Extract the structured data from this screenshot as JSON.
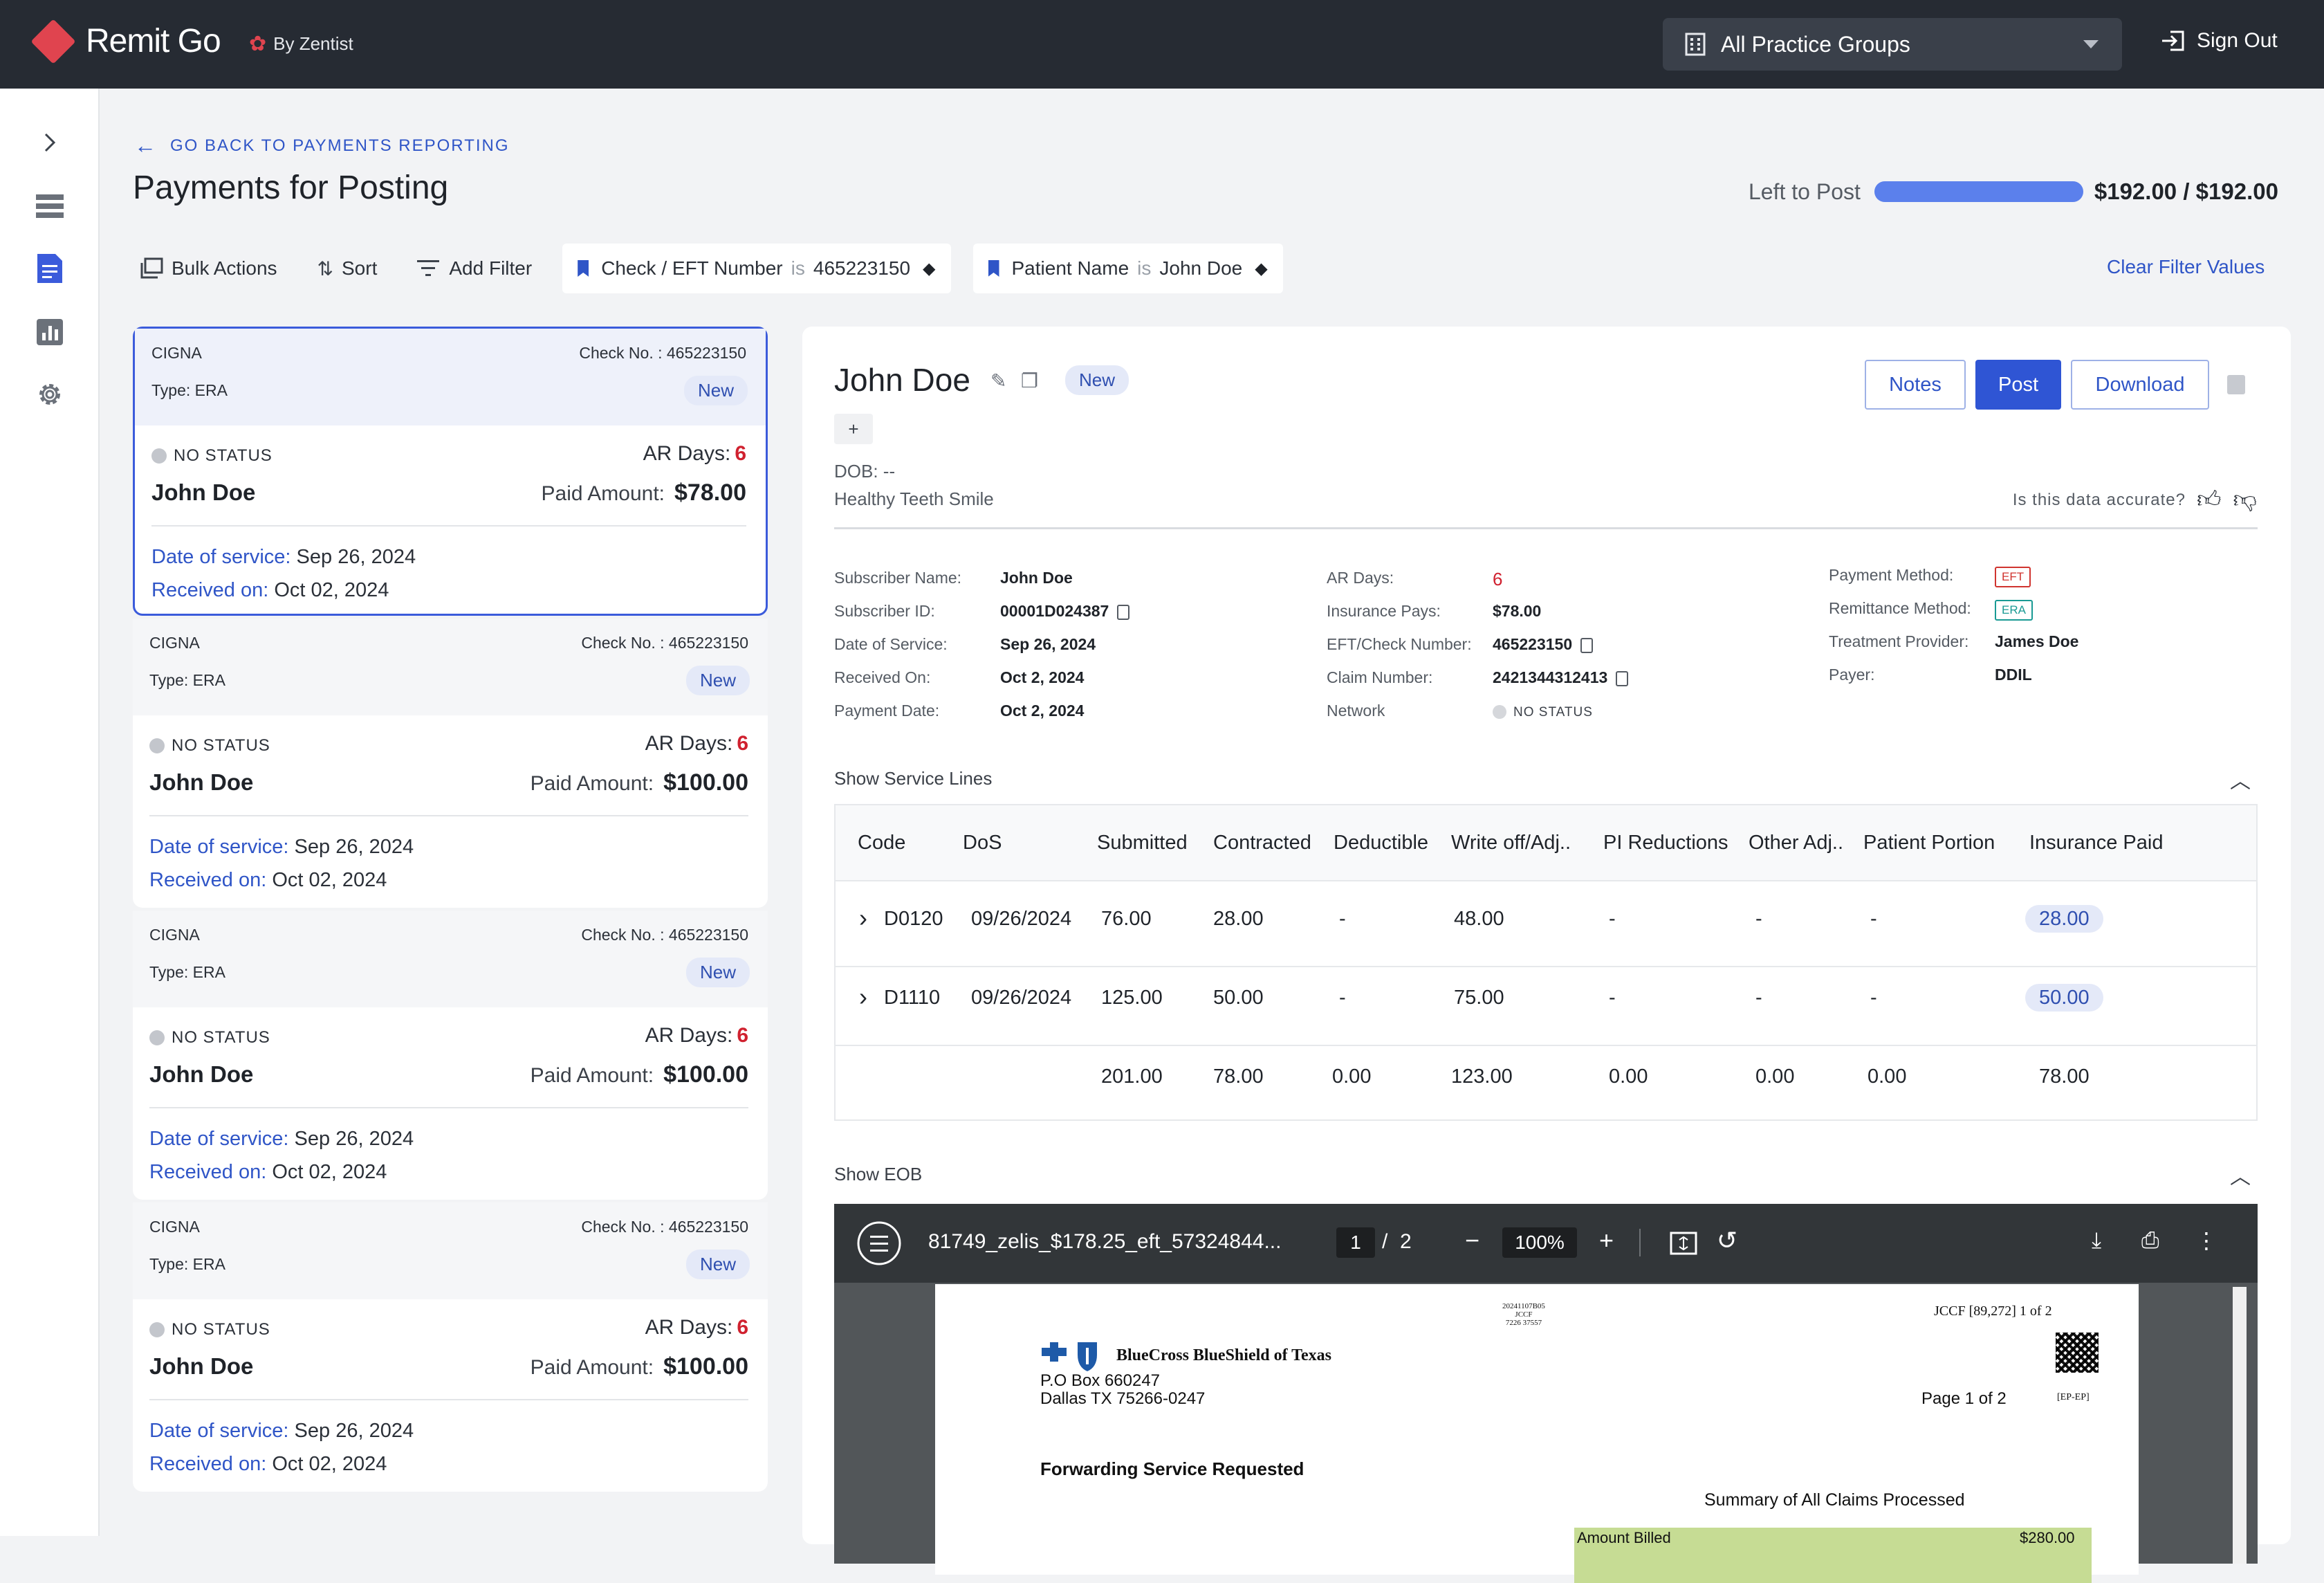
{
  "app": {
    "name": "Remit Go",
    "by": "By Zentist"
  },
  "topbar": {
    "practice_group": "All Practice Groups",
    "sign_out": "Sign Out"
  },
  "page": {
    "back_link": "GO BACK TO PAYMENTS REPORTING",
    "title": "Payments for Posting",
    "left_to_post_label": "Left to Post",
    "left_to_post_value": "$192.00 / $192.00",
    "left_to_post_fraction": 1.0
  },
  "toolbar": {
    "bulk_actions": "Bulk Actions",
    "sort": "Sort",
    "add_filter": "Add Filter",
    "filters": [
      {
        "field": "Check / EFT Number",
        "op": "is",
        "value": "465223150"
      },
      {
        "field": "Patient Name",
        "op": "is",
        "value": "John Doe"
      }
    ],
    "clear": "Clear Filter Values"
  },
  "cards": [
    {
      "payer": "CIGNA",
      "check_label": "Check No. :",
      "check": "465223150",
      "type": "Type: ERA",
      "badge": "New",
      "status": "NO STATUS",
      "ar_label": "AR Days:",
      "ar_days": "6",
      "patient": "John Doe",
      "paid_label": "Paid Amount:",
      "paid": "$78.00",
      "dos_label": "Date of service:",
      "dos": "Sep 26, 2024",
      "rec_label": "Received on:",
      "rec": "Oct 02, 2024"
    },
    {
      "payer": "CIGNA",
      "check_label": "Check No. :",
      "check": "465223150",
      "type": "Type: ERA",
      "badge": "New",
      "status": "NO STATUS",
      "ar_label": "AR Days:",
      "ar_days": "6",
      "patient": "John Doe",
      "paid_label": "Paid Amount:",
      "paid": "$100.00",
      "dos_label": "Date of service:",
      "dos": "Sep 26, 2024",
      "rec_label": "Received on:",
      "rec": "Oct 02, 2024"
    },
    {
      "payer": "CIGNA",
      "check_label": "Check No. :",
      "check": "465223150",
      "type": "Type: ERA",
      "badge": "New",
      "status": "NO STATUS",
      "ar_label": "AR Days:",
      "ar_days": "6",
      "patient": "John Doe",
      "paid_label": "Paid Amount:",
      "paid": "$100.00",
      "dos_label": "Date of service:",
      "dos": "Sep 26, 2024",
      "rec_label": "Received on:",
      "rec": "Oct 02, 2024"
    },
    {
      "payer": "CIGNA",
      "check_label": "Check No. :",
      "check": "465223150",
      "type": "Type: ERA",
      "badge": "New",
      "status": "NO STATUS",
      "ar_label": "AR Days:",
      "ar_days": "6",
      "patient": "John Doe",
      "paid_label": "Paid Amount:",
      "paid": "$100.00",
      "dos_label": "Date of service:",
      "dos": "Sep 26, 2024",
      "rec_label": "Received on:",
      "rec": "Oct 02, 2024"
    }
  ],
  "detail": {
    "patient": "John Doe",
    "badge": "New",
    "plus": "+",
    "dob": "DOB: --",
    "practice": "Healthy Teeth Smile",
    "accuracy_q": "Is this data accurate?",
    "buttons": {
      "notes": "Notes",
      "post": "Post",
      "download": "Download"
    },
    "col1": [
      {
        "label": "Subscriber Name:",
        "value": "John Doe"
      },
      {
        "label": "Subscriber ID:",
        "value": "00001D024387"
      },
      {
        "label": "Date of Service:",
        "value": "Sep 26, 2024"
      },
      {
        "label": "Received On:",
        "value": "Oct 2, 2024"
      },
      {
        "label": "Payment Date:",
        "value": "Oct 2, 2024"
      }
    ],
    "col2": [
      {
        "label": "AR Days:",
        "value": "6"
      },
      {
        "label": "Insurance Pays:",
        "value": "$78.00"
      },
      {
        "label": "EFT/Check Number:",
        "value": "465223150"
      },
      {
        "label": "Claim Number:",
        "value": "2421344312413"
      },
      {
        "label": "Network",
        "value": "NO STATUS"
      }
    ],
    "col3": [
      {
        "label": "Payment Method:",
        "value": "EFT"
      },
      {
        "label": "Remittance Method:",
        "value": "ERA"
      },
      {
        "label": "Treatment Provider:",
        "value": "James Doe"
      },
      {
        "label": "Payer:",
        "value": "DDIL"
      }
    ],
    "service_lines_title": "Show Service Lines",
    "table_headers": [
      "Code",
      "DoS",
      "Submitted",
      "Contracted",
      "Deductible",
      "Write off/Adj..",
      "PI Reductions",
      "Other Adj..",
      "Patient Portion",
      "Insurance Paid"
    ],
    "rows": [
      [
        "D0120",
        "09/26/2024",
        "76.00",
        "28.00",
        "-",
        "48.00",
        "-",
        "-",
        "-",
        "28.00"
      ],
      [
        "D1110",
        "09/26/2024",
        "125.00",
        "50.00",
        "-",
        "75.00",
        "-",
        "-",
        "-",
        "50.00"
      ]
    ],
    "totals": [
      "201.00",
      "78.00",
      "0.00",
      "123.00",
      "0.00",
      "0.00",
      "0.00",
      "78.00"
    ],
    "eob_title": "Show EOB",
    "viewer": {
      "filename": "81749_zelis_$178.25_eft_57324844...",
      "page": "1",
      "page_sep": "/",
      "pages": "2",
      "zoom": "100%"
    },
    "eob_doc": {
      "code_block": "20241107B05\nJCCF\n7226 37557",
      "jccf": "JCCF [89,272] 1 of 2",
      "insurer": "BlueCross BlueShield of Texas",
      "addr1": "P.O Box 660247",
      "addr2": "Dallas TX 75266-0247",
      "page": "Page 1 of 2",
      "epep": "[EP-EP]",
      "forwarding": "Forwarding Service Requested",
      "summary": "Summary of All Claims Processed",
      "amount_billed": "Amount Billed",
      "amount_billed_val": "$280.00"
    }
  }
}
